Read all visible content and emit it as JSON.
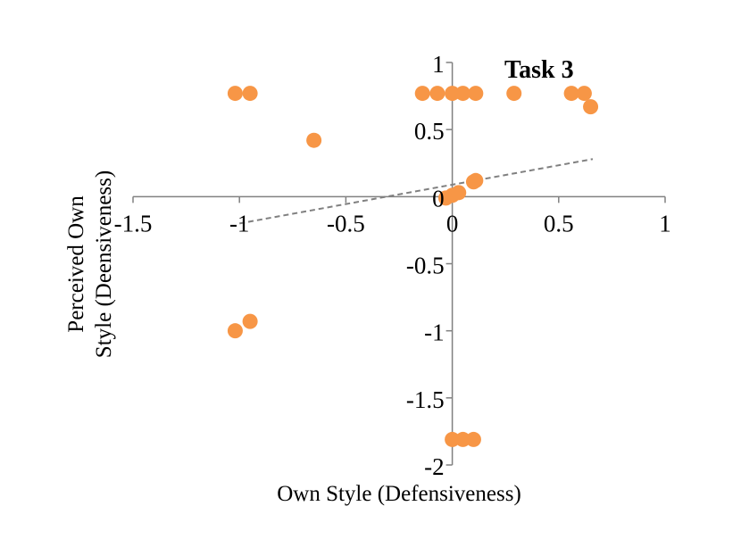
{
  "chart_data": {
    "type": "scatter",
    "title": "Task 3",
    "xlabel": "Own Style (Defensiveness)",
    "ylabel_lines": [
      "Perceived Own",
      "Style (Deensiveness)"
    ],
    "xlim": [
      -1.5,
      1
    ],
    "ylim": [
      -2,
      1
    ],
    "x_ticks": [
      -1.5,
      -1,
      -0.5,
      0,
      0.5,
      1
    ],
    "y_ticks": [
      1,
      0.5,
      0,
      -0.5,
      -1,
      -1.5,
      -2
    ],
    "x_tick_labels": [
      "-1.5",
      "-1",
      "-0.5",
      "0",
      "0.5",
      "1"
    ],
    "y_tick_labels": [
      "1",
      "0.5",
      "0",
      "-0.5",
      "-1",
      "-1.5",
      "-2"
    ],
    "point_color": "#F79646",
    "axis_color": "#808080",
    "trendline_color": "#808080",
    "trendline": {
      "x": [
        -1.0,
        0.66
      ],
      "y": [
        -0.2,
        0.28
      ]
    },
    "series": [
      {
        "name": "Task 3",
        "points": [
          [
            -1.02,
            0.77
          ],
          [
            -0.95,
            0.77
          ],
          [
            -0.65,
            0.42
          ],
          [
            -1.02,
            -1.0
          ],
          [
            -0.95,
            -0.93
          ],
          [
            -0.14,
            0.77
          ],
          [
            -0.07,
            0.77
          ],
          [
            0.0,
            0.77
          ],
          [
            0.05,
            0.77
          ],
          [
            0.11,
            0.77
          ],
          [
            0.29,
            0.77
          ],
          [
            0.56,
            0.77
          ],
          [
            0.62,
            0.77
          ],
          [
            0.65,
            0.67
          ],
          [
            -0.03,
            -0.01
          ],
          [
            0.0,
            0.01
          ],
          [
            0.03,
            0.03
          ],
          [
            0.1,
            0.11
          ],
          [
            0.11,
            0.12
          ],
          [
            0.0,
            -1.81
          ],
          [
            0.05,
            -1.81
          ],
          [
            0.1,
            -1.81
          ]
        ]
      }
    ]
  }
}
